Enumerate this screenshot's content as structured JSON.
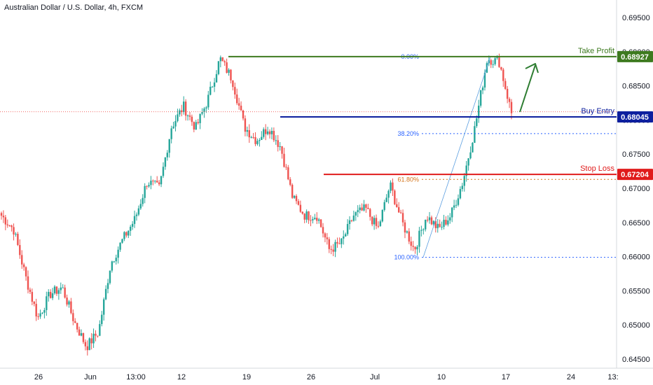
{
  "chart_data": {
    "type": "candlestick",
    "title": "Australian Dollar / U.S. Dollar, 4h, FXCM",
    "x_tick_labels": [
      "26",
      "Jun",
      "13:00",
      "12",
      "19",
      "26",
      "Jul",
      "10",
      "17",
      "24",
      "13:"
    ],
    "y_tick_labels": [
      "0.69500",
      "0.69000",
      "0.68500",
      "0.68000",
      "0.67500",
      "0.67000",
      "0.66500",
      "0.66000",
      "0.65500",
      "0.65000",
      "0.64500"
    ],
    "ylim": [
      0.6441,
      0.697
    ],
    "grid": false,
    "series_anchors": [
      {
        "x": "",
        "y": 0.666
      },
      {
        "y": 0.664
      },
      {
        "y": 0.657
      },
      {
        "y": 0.651
      },
      {
        "y": 0.6545
      },
      {
        "y": 0.6555
      },
      {
        "y": 0.6505
      },
      {
        "y": 0.6468
      },
      {
        "y": 0.649
      },
      {
        "y": 0.659
      },
      {
        "y": 0.6625
      },
      {
        "y": 0.6655
      },
      {
        "y": 0.671
      },
      {
        "y": 0.67
      },
      {
        "y": 0.679
      },
      {
        "y": 0.682
      },
      {
        "y": 0.6788
      },
      {
        "y": 0.683
      },
      {
        "y": 0.689
      },
      {
        "y": 0.686
      },
      {
        "y": 0.679
      },
      {
        "y": 0.677
      },
      {
        "y": 0.679
      },
      {
        "y": 0.676
      },
      {
        "y": 0.6685
      },
      {
        "y": 0.666
      },
      {
        "y": 0.666
      },
      {
        "y": 0.661
      },
      {
        "y": 0.662
      },
      {
        "y": 0.666
      },
      {
        "y": 0.667
      },
      {
        "y": 0.664
      },
      {
        "y": 0.6705
      },
      {
        "y": 0.665
      },
      {
        "y": 0.661
      },
      {
        "y": 0.666
      },
      {
        "y": 0.664
      },
      {
        "y": 0.666
      },
      {
        "y": 0.671
      },
      {
        "y": 0.679
      },
      {
        "y": 0.689
      },
      {
        "y": 0.6885
      },
      {
        "y": 0.681
      }
    ],
    "levels": [
      {
        "label": "Take Profit",
        "value": "0.68927",
        "price": 0.68927,
        "color": "#3d7a1f"
      },
      {
        "label": "Buy Entry",
        "value": "0.68045",
        "price": 0.68045,
        "color": "#0d1f9e"
      },
      {
        "label": "Stop Loss",
        "value": "0.67204",
        "price": 0.67204,
        "color": "#e01b1b"
      }
    ],
    "fib_levels": [
      {
        "label": "0.00%",
        "price": 0.68927,
        "color": "#2962ff"
      },
      {
        "label": "38.20%",
        "price": 0.678,
        "color": "#2962ff"
      },
      {
        "label": "61.80%",
        "price": 0.6713,
        "color": "#d4731a"
      },
      {
        "label": "100.00%",
        "price": 0.6599,
        "color": "#2962ff"
      }
    ],
    "current_price_line": 0.6812
  }
}
